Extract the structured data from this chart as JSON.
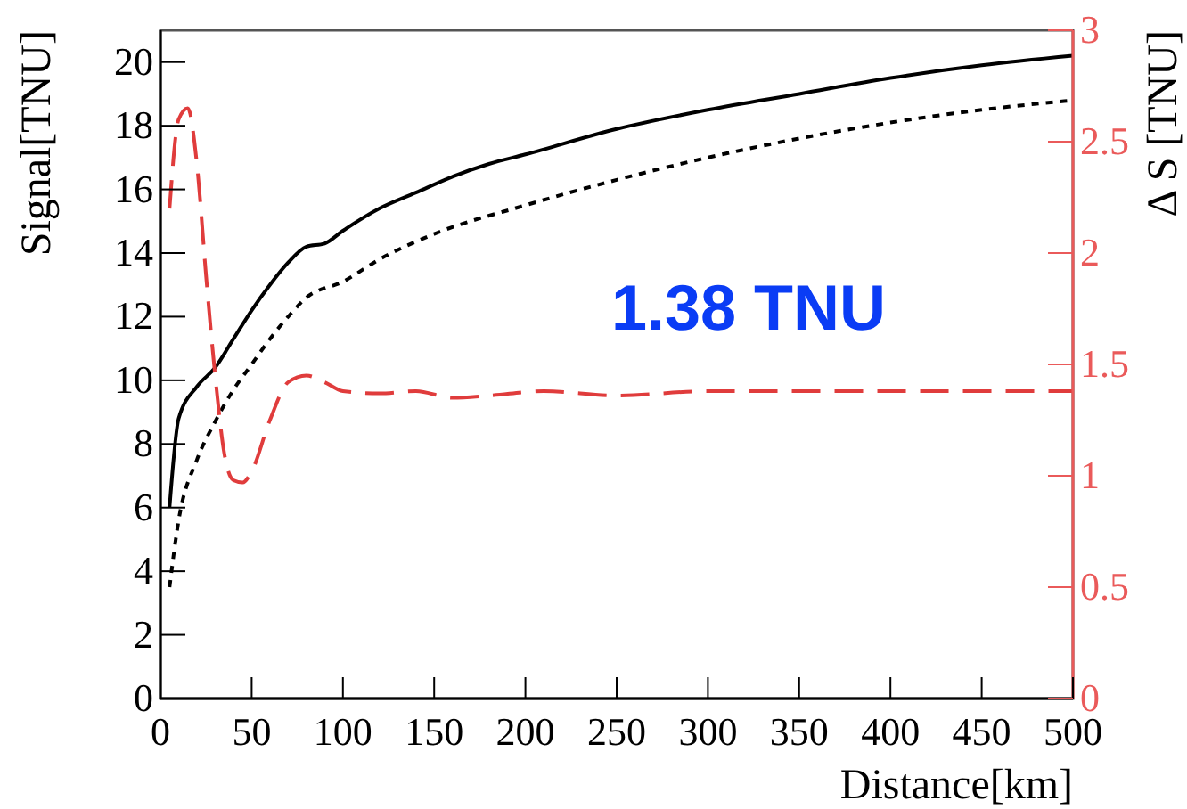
{
  "chart_data": {
    "type": "line",
    "xlabel": "Distance[km]",
    "ylabel": "Signal[TNU]",
    "y2label": "Δ S [TNU]",
    "xlim": [
      0,
      500
    ],
    "xticks": [
      0,
      50,
      100,
      150,
      200,
      250,
      300,
      350,
      400,
      450,
      500
    ],
    "ylim": [
      0,
      21
    ],
    "yticks": [
      0,
      2,
      4,
      6,
      8,
      10,
      12,
      14,
      16,
      18,
      20
    ],
    "y2lim": [
      0,
      3
    ],
    "y2ticks": [
      0,
      0.5,
      1,
      1.5,
      2,
      2.5,
      3
    ],
    "grid": false,
    "annotations": [
      "1.38 TNU"
    ],
    "series": [
      {
        "color": "#000000",
        "line_style": "solid",
        "x": [
          5,
          10,
          20,
          30,
          40,
          50,
          60,
          70,
          80,
          90,
          100,
          120,
          140,
          160,
          180,
          200,
          250,
          300,
          350,
          400,
          450,
          500
        ],
        "values": [
          6,
          8.8,
          9.8,
          10.4,
          11.3,
          12.2,
          13,
          13.7,
          14.2,
          14.3,
          14.7,
          15.4,
          15.9,
          16.4,
          16.8,
          17.1,
          17.9,
          18.5,
          19,
          19.5,
          19.9,
          20.2
        ]
      },
      {
        "color": "#000000",
        "line_style": "dotted",
        "x": [
          5,
          10,
          20,
          30,
          40,
          50,
          60,
          70,
          80,
          100,
          120,
          150,
          200,
          250,
          300,
          350,
          400,
          450,
          500
        ],
        "values": [
          3.5,
          5.6,
          7.5,
          8.7,
          9.7,
          10.5,
          11.3,
          12,
          12.6,
          13.1,
          13.8,
          14.6,
          15.5,
          16.3,
          17,
          17.6,
          18.1,
          18.5,
          18.8
        ]
      },
      {
        "color": "#e03c3c",
        "line_style": "dashed",
        "axis": "y2",
        "x": [
          5,
          10,
          15,
          20,
          25,
          30,
          35,
          40,
          45,
          50,
          60,
          70,
          80,
          90,
          100,
          120,
          140,
          160,
          180,
          210,
          250,
          300,
          400,
          500
        ],
        "values": [
          2.2,
          2.6,
          2.65,
          2.4,
          1.9,
          1.45,
          1.1,
          0.98,
          0.97,
          1.02,
          1.25,
          1.42,
          1.45,
          1.42,
          1.38,
          1.37,
          1.38,
          1.35,
          1.36,
          1.38,
          1.36,
          1.38,
          1.38,
          1.38
        ]
      }
    ]
  }
}
